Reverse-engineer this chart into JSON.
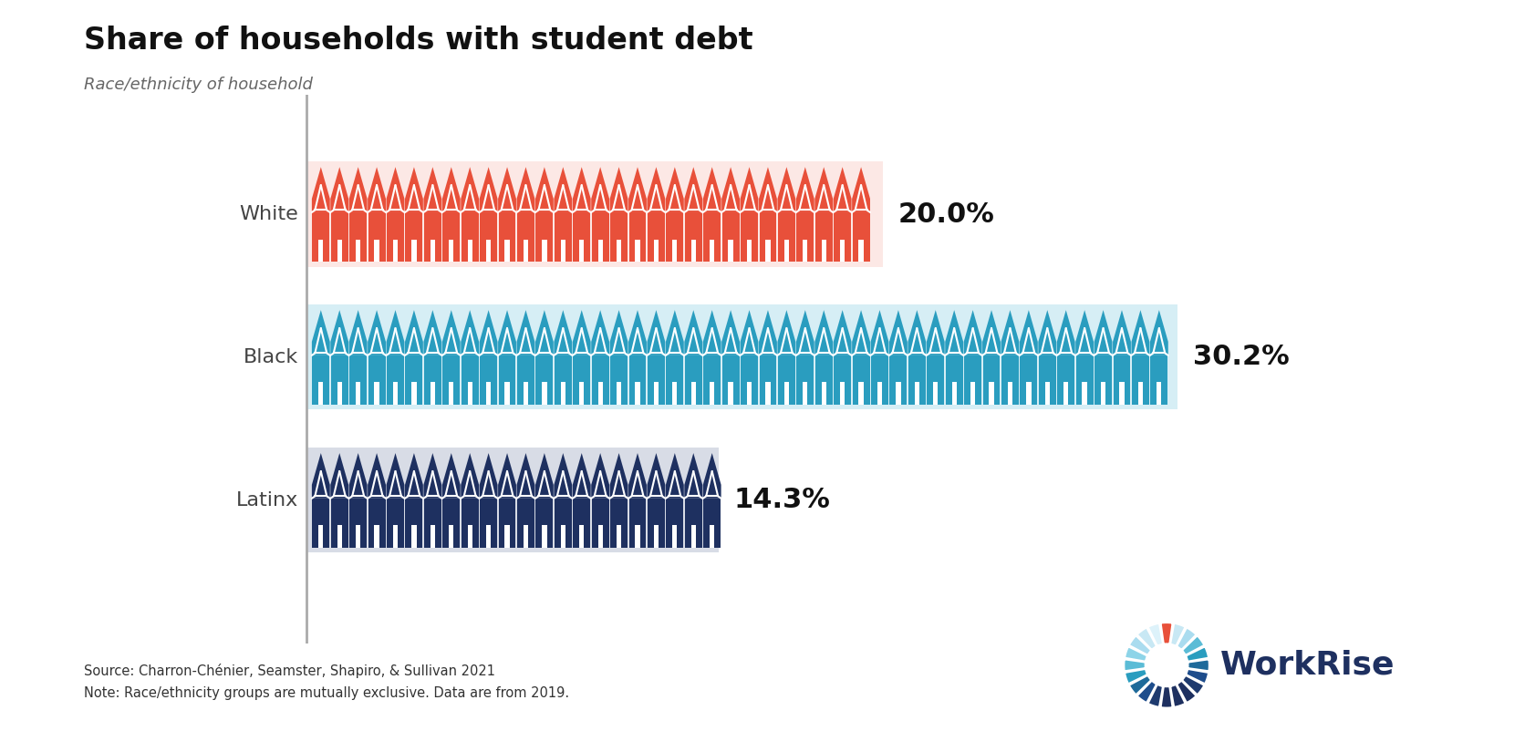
{
  "title": "Share of households with student debt",
  "subtitle": "Race/ethnicity of household",
  "categories": [
    "White",
    "Black",
    "Latinx"
  ],
  "values": [
    20.0,
    30.2,
    14.3
  ],
  "percentages": [
    "20.0%",
    "30.2%",
    "14.3%"
  ],
  "bar_bg_colors": [
    "#fce8e5",
    "#d6eef5",
    "#d8dce6"
  ],
  "icon_colors": [
    "#e8503a",
    "#2a9dbf",
    "#1e3060"
  ],
  "background_color": "#ffffff",
  "source_text": "Source: Charron-Chénier, Seamster, Shapiro, & Sullivan 2021",
  "note_text": "Note: Race/ethnicity groups are mutually exclusive. Data are from 2019.",
  "workrise_text": "WorkRise",
  "workrise_color": "#1e3060",
  "axis_line_color": "#aaaaaa",
  "label_color": "#444444",
  "pct_color": "#111111"
}
